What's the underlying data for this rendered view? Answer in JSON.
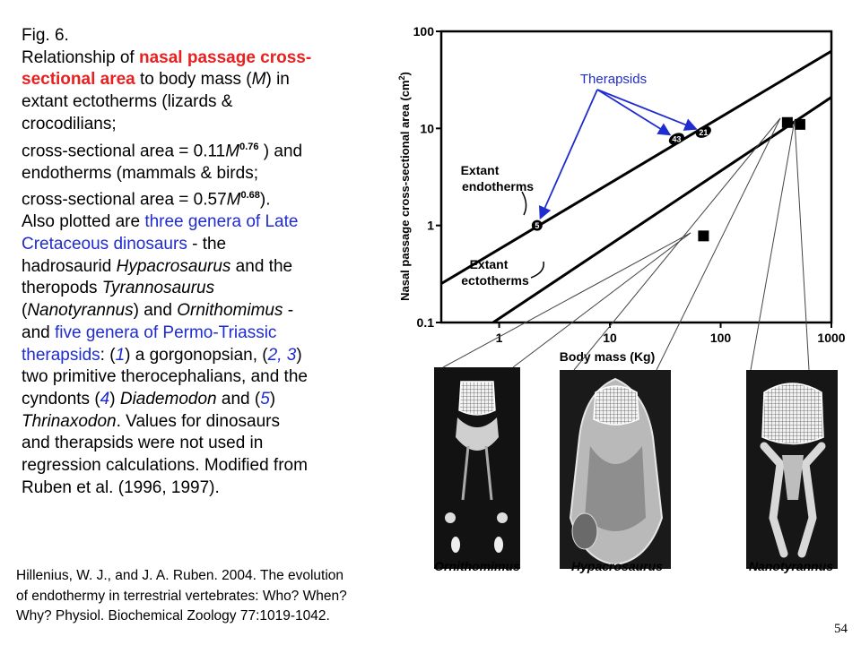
{
  "caption": {
    "fig_label": "Fig. 6.",
    "l1a": "Relationship of ",
    "l1b": "nasal passage cross-",
    "l2a": "sectional area",
    "l2b": " to body mass (",
    "l2c": "M",
    "l2d": ") in",
    "l3": "extant ectotherms (lizards &",
    "l4": "crocodilians;",
    "l5a": "cross-sectional area = 0.11",
    "l5b": "M",
    "l5c": "0.76",
    "l5d": " ) and",
    "l6": "endotherms (mammals & birds;",
    "l7a": "cross-sectional area = 0.57",
    "l7b": "M",
    "l7c": "0.68",
    "l7d": ").",
    "l8a": "Also plotted are ",
    "l8b": "three genera of Late",
    "l9a": "Cretaceous dinosaurs",
    "l9b": " - the",
    "l10a": "hadrosaurid ",
    "l10b": "Hypacrosaurus",
    "l10c": " and the",
    "l11a": "theropods ",
    "l11b": "Tyrannosaurus",
    "l12a": "(",
    "l12b": "Nanotyrannus",
    "l12c": ") and ",
    "l12d": "Ornithomimus",
    "l12e": " -",
    "l13a": "and ",
    "l13b": "five genera of Permo-Triassic",
    "l14a": "therapsids",
    "l14b": ": (",
    "l14c": "1",
    "l14d": ") a gorgonopsian, (",
    "l14e": "2, 3",
    "l14f": ")",
    "l15": "two primitive therocephalians, and the",
    "l16a": "cyndonts (",
    "l16b": "4",
    "l16c": ") ",
    "l16d": "Diademodon",
    "l16e": " and (",
    "l16f": "5",
    "l16g": ")",
    "l17a": "Thrinaxodon",
    "l17b": ".  Values for dinosaurs",
    "l18": "and therapsids were not used in",
    "l19": "regression calculations.  Modified from",
    "l20": "Ruben et al. (1996, 1997)."
  },
  "citation": {
    "line1": "Hillenius, W. J., and J. A. Ruben. 2004. The evolution",
    "line2": "of endothermy in terrestrial vertebrates: Who? When?",
    "line3": "Why? Physiol. Biochemical Zoology 77:1019-1042."
  },
  "slide_number": "54",
  "chart_data": {
    "type": "scatter",
    "xlabel": "Body mass (Kg)",
    "ylabel": "Nasal passage cross-sectional area (cm",
    "ylabel_sup": "2",
    "ylabel_close": ")",
    "xscale": "log",
    "yscale": "log",
    "xlim": [
      0.3,
      1000
    ],
    "ylim": [
      0.1,
      100
    ],
    "x_ticks": [
      {
        "value": 1,
        "label": "1"
      },
      {
        "value": 10,
        "label": "10"
      },
      {
        "value": 100,
        "label": "100"
      },
      {
        "value": 1000,
        "label": "1000"
      }
    ],
    "y_ticks": [
      {
        "value": 0.1,
        "label": "0.1"
      },
      {
        "value": 1,
        "label": "1"
      },
      {
        "value": 10,
        "label": "10"
      },
      {
        "value": 100,
        "label": "100"
      }
    ],
    "grid": false,
    "regression_lines": [
      {
        "label_line1": "Extant",
        "label_line2": "endotherms",
        "coef": 0.57,
        "exp": 0.68,
        "x_range": [
          0.3,
          1000
        ]
      },
      {
        "label_line1": "Extant",
        "label_line2": "ectotherms",
        "coef": 0.11,
        "exp": 0.76,
        "x_range": [
          0.3,
          1000
        ]
      }
    ],
    "therapsid_label": "Therapsids",
    "therapsids": [
      {
        "label": "5",
        "x": 2.2,
        "y": 1.0
      },
      {
        "label": "43",
        "x": 40,
        "y": 7.8
      },
      {
        "label": "21",
        "x": 70,
        "y": 9.2
      }
    ],
    "dinosaurs": [
      {
        "name": "Ornithomimus",
        "x": 70,
        "y": 0.78
      },
      {
        "name": "Hypacrosaurus",
        "x": 400,
        "y": 11.5
      },
      {
        "name": "Nanotyrannus",
        "x": 520,
        "y": 11.0
      }
    ],
    "colors": {
      "annotation": "#1f2ccf",
      "caption_highlight": "#e8201f"
    }
  }
}
